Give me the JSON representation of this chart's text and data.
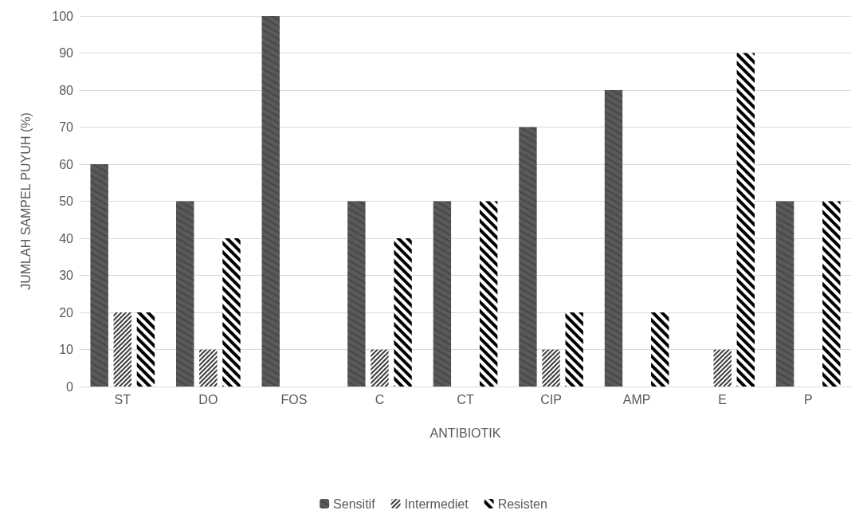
{
  "chart_data": {
    "type": "bar",
    "xlabel": "ANTIBIOTIK",
    "ylabel": "JUMLAH SAMPEL PUYUH (%)",
    "categories": [
      "ST",
      "DO",
      "FOS",
      "C",
      "CT",
      "CIP",
      "AMP",
      "E",
      "P"
    ],
    "series": [
      {
        "name": "Sensitif",
        "color": "#595959",
        "values": [
          60,
          50,
          100,
          50,
          50,
          70,
          80,
          0,
          50
        ]
      },
      {
        "name": "Intermediet",
        "color": "#3a3a3a",
        "values": [
          20,
          10,
          0,
          10,
          0,
          10,
          0,
          10,
          0
        ]
      },
      {
        "name": "Resisten",
        "color": "#000000",
        "values": [
          20,
          40,
          0,
          40,
          50,
          20,
          20,
          90,
          50
        ]
      }
    ],
    "ylim": [
      0,
      100
    ],
    "yticks": [
      0,
      10,
      20,
      30,
      40,
      50,
      60,
      70,
      80,
      90,
      100
    ],
    "grid": "y",
    "legend": "bottom"
  }
}
